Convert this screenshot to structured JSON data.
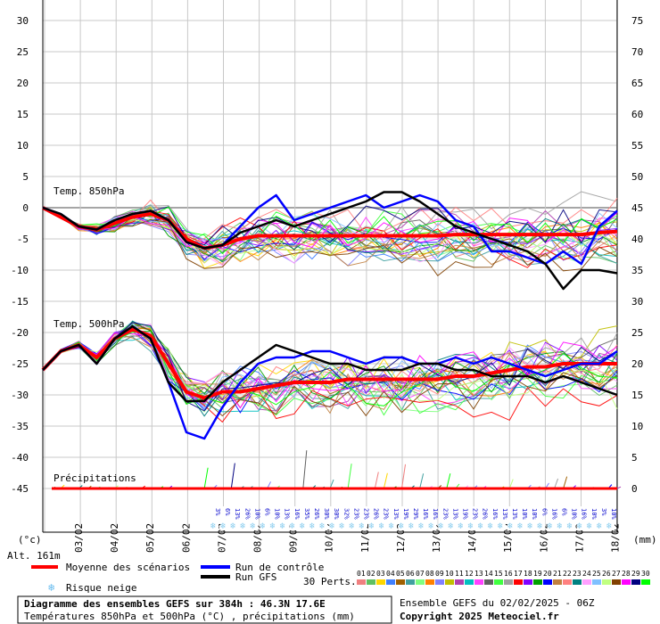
{
  "chart_data": {
    "type": "line",
    "title": "Diagramme des ensembles GEFS sur 384h : 46.3N 17.6E",
    "subtitle": "Températures 850hPa et 500hPa (°C) , précipitations (mm)",
    "run_info": "Ensemble GEFS du 02/02/2025 - 06Z",
    "copyright": "Copyright 2025 Meteociel.fr",
    "altitude": "Alt. 161m",
    "left_unit": "(°c)",
    "right_unit": "(mm)",
    "left_ticks": [
      "30",
      "25",
      "20",
      "15",
      "10",
      "5",
      "0",
      "-5",
      "-10",
      "-15",
      "-20",
      "-25",
      "-30",
      "-35",
      "-40",
      "-45"
    ],
    "left_tick_values": [
      30,
      25,
      20,
      15,
      10,
      5,
      0,
      -5,
      -10,
      -15,
      -20,
      -25,
      -30,
      -35,
      -40,
      -45
    ],
    "right_ticks": [
      "75",
      "70",
      "65",
      "60",
      "55",
      "50",
      "45",
      "40",
      "35",
      "30",
      "25",
      "20",
      "15",
      "10",
      "5",
      "0"
    ],
    "x_dates": [
      "03/02",
      "04/02",
      "05/02",
      "06/02",
      "07/02",
      "08/02",
      "09/02",
      "10/02",
      "11/02",
      "12/02",
      "13/02",
      "14/02",
      "15/02",
      "16/02",
      "17/02",
      "18/02"
    ],
    "sections": {
      "t850": "Temp. 850hPa",
      "t500": "Temp. 500hPa",
      "precip": "Précipitations"
    },
    "legend": {
      "mean": "Moyenne des scénarios",
      "control": "Run de contrôle",
      "gfs": "Run GFS",
      "snow": "Risque neige",
      "perts": "30 Perts."
    },
    "snow_percent": [
      "3%",
      "6%",
      "13%",
      "26%",
      "10%",
      "6%",
      "10%",
      "13%",
      "16%",
      "35%",
      "26%",
      "30%",
      "30%",
      "32%",
      "23%",
      "23%",
      "26%",
      "23%",
      "13%",
      "19%",
      "29%",
      "16%",
      "16%",
      "23%",
      "13%",
      "19%",
      "23%",
      "26%",
      "16%",
      "13%",
      "13%",
      "10%",
      "10%",
      "6%",
      "16%",
      "6%",
      "10%",
      "16%",
      "10%",
      "3%",
      "10%"
    ],
    "pert_numbers": [
      "01",
      "02",
      "03",
      "04",
      "05",
      "06",
      "07",
      "08",
      "09",
      "10",
      "11",
      "12",
      "13",
      "14",
      "15",
      "16",
      "17",
      "18",
      "19",
      "20",
      "21",
      "22",
      "23",
      "24",
      "25",
      "26",
      "27",
      "28",
      "29",
      "30"
    ],
    "pert_colors": [
      "#f08080",
      "#60c060",
      "#ffd700",
      "#4080ff",
      "#a06000",
      "#40a0a0",
      "#80ff80",
      "#ff8000",
      "#8080ff",
      "#c0c000",
      "#b040b0",
      "#00c0c0",
      "#ff40ff",
      "#606060",
      "#40ff40",
      "#a0a0a0",
      "#ff0000",
      "#8000ff",
      "#00a000",
      "#0000ff",
      "#c08040",
      "#ff8080",
      "#008080",
      "#ffa0ff",
      "#80c0ff",
      "#c0ff80",
      "#804000",
      "#ff00ff",
      "#000080",
      "#00ff00"
    ],
    "colors": {
      "mean": "#ff0000",
      "control": "#0000ff",
      "gfs": "#000000",
      "snow": "#88ccee"
    },
    "series": [
      {
        "name": "Moyenne des scénarios",
        "panel": "t850",
        "x": [
          0,
          12,
          24,
          36,
          48,
          60,
          72,
          84,
          96,
          108,
          120,
          132,
          144,
          156,
          168,
          180,
          192,
          204,
          216,
          228,
          240,
          252,
          264,
          276,
          288,
          300,
          312,
          324,
          336,
          348,
          360,
          372,
          384
        ],
        "values": [
          0,
          -1.5,
          -3,
          -3.5,
          -2.5,
          -1.5,
          -1,
          -2,
          -5,
          -6.5,
          -6,
          -5,
          -4.5,
          -4.5,
          -4.5,
          -4.5,
          -4.5,
          -4.5,
          -4.5,
          -4.5,
          -4.5,
          -4.5,
          -4.5,
          -4.3,
          -4.3,
          -4.3,
          -4.3,
          -4.3,
          -4.3,
          -4.3,
          -4.3,
          -4.0,
          -3.8
        ]
      },
      {
        "name": "Run de contrôle",
        "panel": "t850",
        "x": [
          0,
          12,
          24,
          36,
          48,
          60,
          72,
          84,
          96,
          108,
          120,
          132,
          144,
          156,
          168,
          180,
          192,
          204,
          216,
          228,
          240,
          252,
          264,
          276,
          288,
          300,
          312,
          324,
          336,
          348,
          360,
          372,
          384
        ],
        "values": [
          0,
          -1,
          -3,
          -3.5,
          -2,
          -1,
          -0.5,
          -2,
          -5.5,
          -6.5,
          -6,
          -3,
          0,
          2,
          -2,
          -1,
          0,
          1,
          2,
          0,
          1,
          2,
          1,
          -2,
          -3,
          -7,
          -7,
          -8,
          -9,
          -7,
          -9,
          -3,
          -0.5
        ]
      },
      {
        "name": "Run GFS",
        "panel": "t850",
        "x": [
          0,
          12,
          24,
          36,
          48,
          60,
          72,
          84,
          96,
          108,
          120,
          132,
          144,
          156,
          168,
          180,
          192,
          204,
          216,
          228,
          240,
          252,
          264,
          276,
          288,
          300,
          312,
          324,
          336,
          348,
          360,
          372,
          384
        ],
        "values": [
          0,
          -1,
          -3,
          -3.5,
          -2,
          -1,
          -0.5,
          -2,
          -5.5,
          -6.5,
          -6,
          -4,
          -3,
          -2,
          -3,
          -2,
          -1,
          0,
          1,
          2.5,
          2.5,
          1,
          -1,
          -3,
          -4,
          -5,
          -6,
          -7,
          -9,
          -13,
          -10,
          -10,
          -10.5
        ]
      },
      {
        "name": "Moyenne des scénarios",
        "panel": "t500",
        "x": [
          0,
          12,
          24,
          36,
          48,
          60,
          72,
          84,
          96,
          108,
          120,
          132,
          144,
          156,
          168,
          180,
          192,
          204,
          216,
          228,
          240,
          252,
          264,
          276,
          288,
          300,
          312,
          324,
          336,
          348,
          360,
          372,
          384
        ],
        "values": [
          -26,
          -23,
          -22,
          -24,
          -21,
          -19.5,
          -20.5,
          -25,
          -29.5,
          -30.5,
          -29.5,
          -29.5,
          -29,
          -28.5,
          -28,
          -28,
          -28,
          -27.5,
          -27.5,
          -27.5,
          -27.5,
          -27.5,
          -27.5,
          -27,
          -27,
          -26.5,
          -26,
          -25.5,
          -25.5,
          -25,
          -25,
          -25,
          -25
        ]
      },
      {
        "name": "Run de contrôle",
        "panel": "t500",
        "x": [
          0,
          12,
          24,
          36,
          48,
          60,
          72,
          84,
          96,
          108,
          120,
          132,
          144,
          156,
          168,
          180,
          192,
          204,
          216,
          228,
          240,
          252,
          264,
          276,
          288,
          300,
          312,
          324,
          336,
          348,
          360,
          372,
          384
        ],
        "values": [
          -26,
          -23,
          -22,
          -25,
          -21,
          -19,
          -21,
          -28,
          -36,
          -37,
          -32,
          -28,
          -25,
          -24,
          -24,
          -23,
          -23,
          -24,
          -25,
          -24,
          -24,
          -25,
          -25,
          -24,
          -25,
          -24,
          -25,
          -26,
          -27,
          -26,
          -25,
          -25,
          -23
        ]
      },
      {
        "name": "Run GFS",
        "panel": "t500",
        "x": [
          0,
          12,
          24,
          36,
          48,
          60,
          72,
          84,
          96,
          108,
          120,
          132,
          144,
          156,
          168,
          180,
          192,
          204,
          216,
          228,
          240,
          252,
          264,
          276,
          288,
          300,
          312,
          324,
          336,
          348,
          360,
          372,
          384
        ],
        "values": [
          -26,
          -23,
          -22,
          -25,
          -21,
          -19,
          -21,
          -28,
          -31,
          -31,
          -28,
          -26,
          -24,
          -22,
          -23,
          -24,
          -25,
          -25,
          -26,
          -26,
          -26,
          -25,
          -25,
          -26,
          -26,
          -27,
          -27,
          -27,
          -28,
          -27,
          -28,
          -29,
          -30
        ]
      }
    ]
  }
}
